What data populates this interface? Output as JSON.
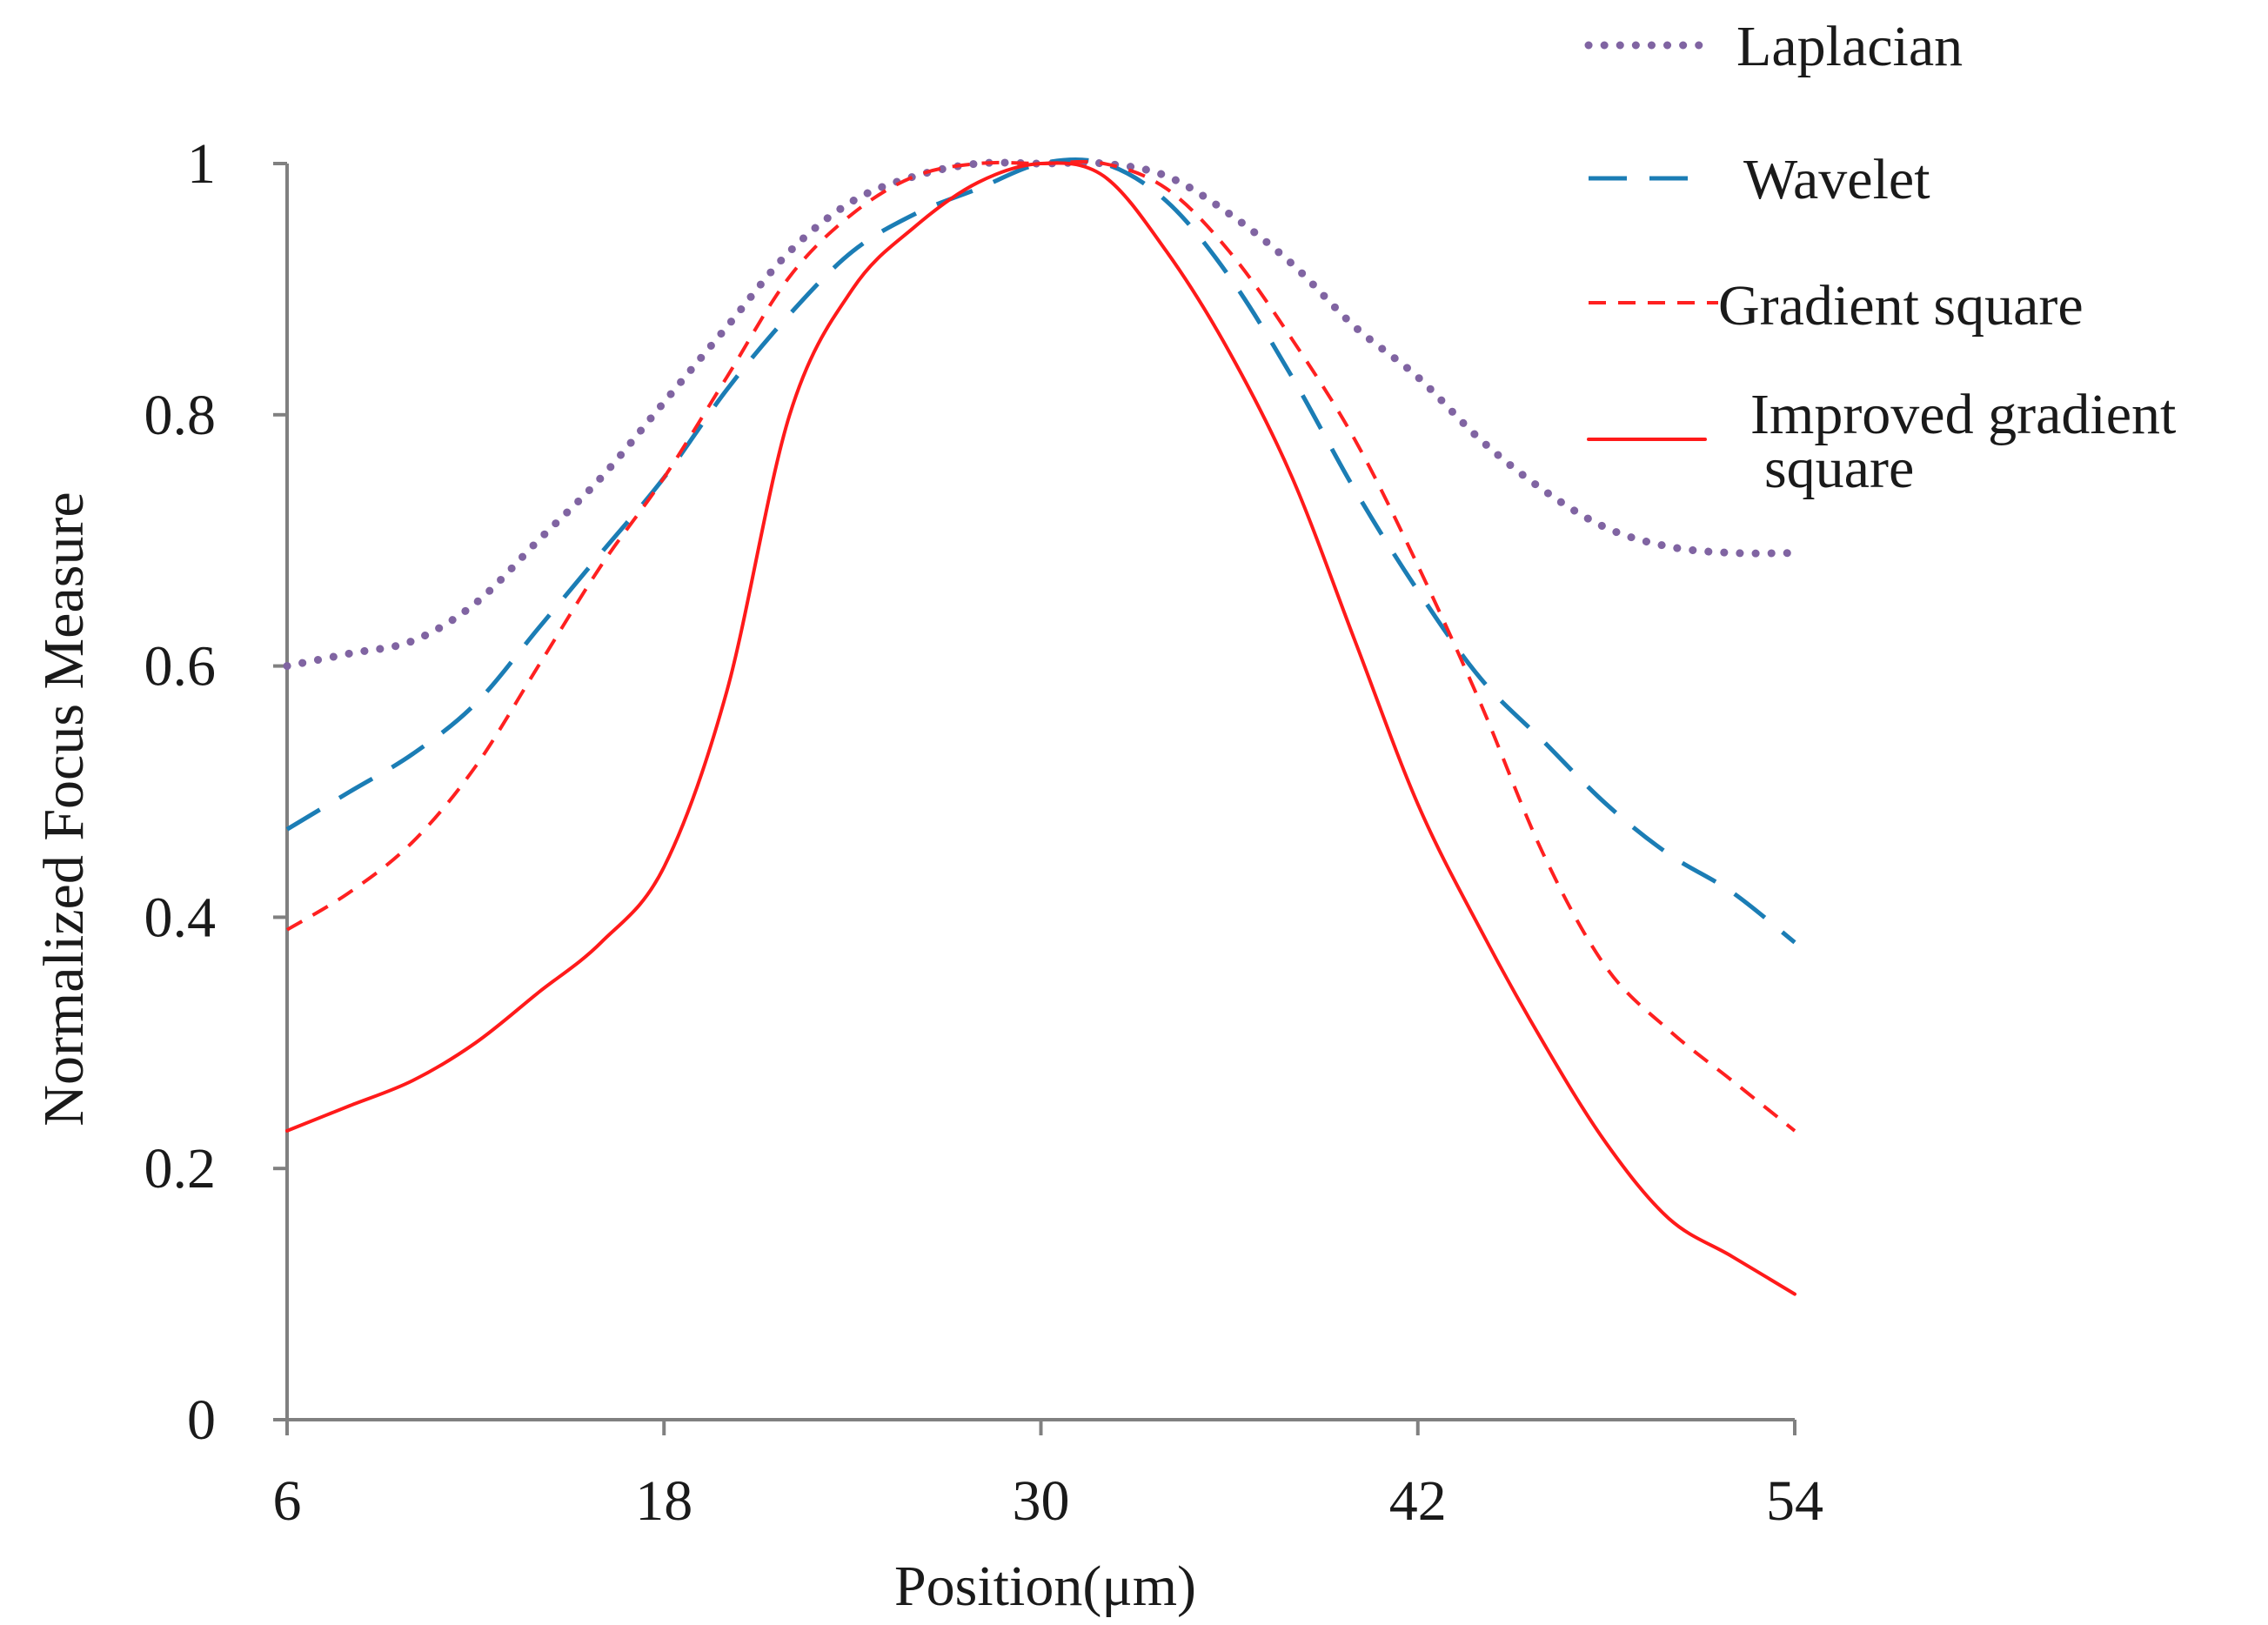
{
  "chart_data": {
    "type": "line",
    "title": "",
    "xlabel": "Position(μm)",
    "ylabel": "Normalized Focus Measure",
    "xlim": [
      6,
      54
    ],
    "ylim": [
      0,
      1
    ],
    "x_ticks": [
      6,
      18,
      30,
      42,
      54
    ],
    "x_tick_labels": [
      "6",
      "18",
      "30",
      "42",
      "54"
    ],
    "y_ticks": [
      0,
      0.2,
      0.4,
      0.6,
      0.8,
      1
    ],
    "y_tick_labels": [
      "0",
      "0.2",
      "0.4",
      "0.6",
      "0.8",
      "1"
    ],
    "grid": false,
    "legend_position": "top-right",
    "series": [
      {
        "name": "Laplacian",
        "color": "#8064A2",
        "style": "dotted",
        "x": [
          6,
          8,
          10,
          12,
          14,
          16,
          18,
          20,
          22,
          24,
          26,
          28,
          30,
          32,
          34,
          36,
          38,
          40,
          42,
          44,
          46,
          48,
          50,
          52,
          54
        ],
        "y": [
          0.6,
          0.61,
          0.62,
          0.65,
          0.7,
          0.75,
          0.81,
          0.87,
          0.93,
          0.97,
          0.99,
          1.0,
          1.0,
          1.0,
          0.99,
          0.96,
          0.92,
          0.87,
          0.83,
          0.78,
          0.74,
          0.71,
          0.695,
          0.69,
          0.69
        ]
      },
      {
        "name": "Wavelet",
        "color": "#1B7DB5",
        "style": "dashed",
        "x": [
          6,
          8,
          10,
          12,
          14,
          16,
          18,
          20,
          22,
          24,
          26,
          28,
          30,
          32,
          34,
          36,
          38,
          40,
          42,
          44,
          46,
          48,
          50,
          52,
          54
        ],
        "y": [
          0.47,
          0.5,
          0.53,
          0.57,
          0.63,
          0.69,
          0.75,
          0.82,
          0.88,
          0.93,
          0.96,
          0.98,
          1.0,
          1.0,
          0.97,
          0.91,
          0.83,
          0.74,
          0.66,
          0.59,
          0.54,
          0.49,
          0.45,
          0.42,
          0.38
        ]
      },
      {
        "name": "Gradient square",
        "color": "#FF2020",
        "style": "dashed-short",
        "x": [
          6,
          8,
          10,
          12,
          14,
          16,
          18,
          20,
          22,
          24,
          26,
          28,
          30,
          32,
          34,
          36,
          38,
          40,
          42,
          44,
          46,
          48,
          50,
          52,
          54
        ],
        "y": [
          0.39,
          0.42,
          0.46,
          0.52,
          0.6,
          0.68,
          0.75,
          0.83,
          0.91,
          0.96,
          0.99,
          1.0,
          1.0,
          1.0,
          0.98,
          0.93,
          0.86,
          0.78,
          0.68,
          0.57,
          0.45,
          0.36,
          0.31,
          0.27,
          0.23
        ]
      },
      {
        "name": "Improved gradient square",
        "color": "#FF1A1A",
        "style": "solid",
        "x": [
          6,
          8,
          10,
          12,
          14,
          16,
          18,
          20,
          22,
          24,
          26,
          28,
          30,
          32,
          34,
          36,
          38,
          40,
          42,
          44,
          46,
          48,
          50,
          52,
          54
        ],
        "y": [
          0.23,
          0.25,
          0.27,
          0.3,
          0.34,
          0.38,
          0.44,
          0.58,
          0.8,
          0.9,
          0.95,
          0.985,
          1.0,
          0.99,
          0.93,
          0.85,
          0.75,
          0.62,
          0.49,
          0.39,
          0.3,
          0.22,
          0.16,
          0.13,
          0.1
        ]
      }
    ],
    "legend_entries": [
      {
        "line1": "Laplacian",
        "line2": ""
      },
      {
        "line1": "Wavelet",
        "line2": ""
      },
      {
        "line1": "Gradient square",
        "line2": ""
      },
      {
        "line1": "Improved gradient",
        "line2": "square"
      }
    ]
  }
}
